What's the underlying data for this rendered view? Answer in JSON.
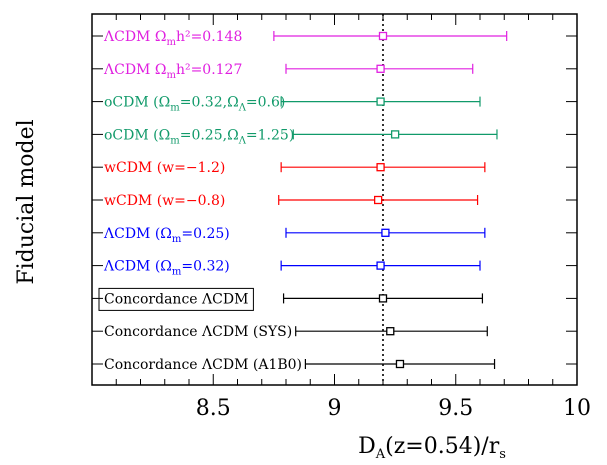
{
  "chart_data": {
    "type": "scatter",
    "orientation": "horizontal-errorbar",
    "xlabel_main": "D",
    "xlabel_sub": "A",
    "xlabel_mid": "(z=0.54)/r",
    "xlabel_sub2": "s",
    "ylabel": "Fiducial model",
    "xlim": [
      8.0,
      10.0
    ],
    "xticks": [
      8.5,
      9.0,
      9.5,
      10.0
    ],
    "xtick_labels": [
      "8.5",
      "9",
      "9.5",
      "10"
    ],
    "reference_x": 9.2,
    "reference_style": "dotted",
    "grid": false,
    "legend": "none",
    "rows": [
      {
        "segments": [
          {
            "text": "ΛCDM Ω"
          },
          {
            "text": "m",
            "sub": true
          },
          {
            "text": "h²=0.148"
          }
        ],
        "color": "#e020e0",
        "y": 9.2,
        "low": 8.75,
        "high": 9.71,
        "boxed": false
      },
      {
        "segments": [
          {
            "text": "ΛCDM Ω"
          },
          {
            "text": "m",
            "sub": true
          },
          {
            "text": "h²=0.127"
          }
        ],
        "color": "#e020e0",
        "y": 9.19,
        "low": 8.8,
        "high": 9.57,
        "boxed": false
      },
      {
        "segments": [
          {
            "text": "oCDM (Ω"
          },
          {
            "text": "m",
            "sub": true
          },
          {
            "text": "=0.32,Ω"
          },
          {
            "text": "Λ",
            "sub": true
          },
          {
            "text": "=0.6)"
          }
        ],
        "color": "#119a6a",
        "y": 9.19,
        "low": 8.78,
        "high": 9.6,
        "boxed": false
      },
      {
        "segments": [
          {
            "text": "oCDM (Ω"
          },
          {
            "text": "m",
            "sub": true
          },
          {
            "text": "=0.25,Ω"
          },
          {
            "text": "Λ",
            "sub": true
          },
          {
            "text": "=1.25)"
          }
        ],
        "color": "#119a6a",
        "y": 9.25,
        "low": 8.83,
        "high": 9.67,
        "boxed": false
      },
      {
        "segments": [
          {
            "text": "wCDM (w=−1.2)"
          }
        ],
        "color": "#ff0000",
        "y": 9.19,
        "low": 8.78,
        "high": 9.62,
        "boxed": false
      },
      {
        "segments": [
          {
            "text": "wCDM (w=−0.8)"
          }
        ],
        "color": "#ff0000",
        "y": 9.18,
        "low": 8.77,
        "high": 9.59,
        "boxed": false
      },
      {
        "segments": [
          {
            "text": "ΛCDM (Ω"
          },
          {
            "text": "m",
            "sub": true
          },
          {
            "text": "=0.25)"
          }
        ],
        "color": "#0000ff",
        "y": 9.21,
        "low": 8.8,
        "high": 9.62,
        "boxed": false
      },
      {
        "segments": [
          {
            "text": "ΛCDM (Ω"
          },
          {
            "text": "m",
            "sub": true
          },
          {
            "text": "=0.32)"
          }
        ],
        "color": "#0000ff",
        "y": 9.19,
        "low": 8.78,
        "high": 9.6,
        "boxed": false
      },
      {
        "segments": [
          {
            "text": "Concordance ΛCDM"
          }
        ],
        "color": "#000000",
        "y": 9.2,
        "low": 8.79,
        "high": 9.61,
        "boxed": true
      },
      {
        "segments": [
          {
            "text": "Concordance ΛCDM (SYS)"
          }
        ],
        "color": "#000000",
        "y": 9.23,
        "low": 8.84,
        "high": 9.63,
        "boxed": false
      },
      {
        "segments": [
          {
            "text": "Concordance ΛCDM (A1B0)"
          }
        ],
        "color": "#000000",
        "y": 9.27,
        "low": 8.88,
        "high": 9.66,
        "boxed": false
      }
    ]
  }
}
